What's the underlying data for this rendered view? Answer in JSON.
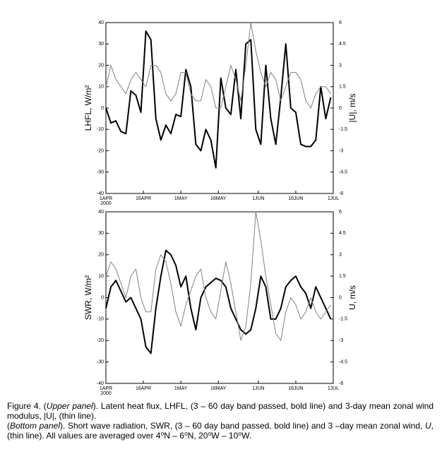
{
  "chart_data": [
    {
      "type": "line",
      "ylabel": "LHFL, W/m²",
      "y2label": "|U|, m/s",
      "xlim": [
        0,
        91
      ],
      "xticks": [
        {
          "value": 0,
          "label": "1APR"
        },
        {
          "value": 15,
          "label": "16APR"
        },
        {
          "value": 30,
          "label": "1MAY"
        },
        {
          "value": 45,
          "label": "16MAY"
        },
        {
          "value": 61,
          "label": "1JUN"
        },
        {
          "value": 76,
          "label": "16JUN"
        },
        {
          "value": 91,
          "label": "1JUL"
        }
      ],
      "x_year": "2000",
      "ylim": [
        -40,
        40
      ],
      "yticks": [
        -40,
        -30,
        -20,
        -10,
        0,
        10,
        20,
        30,
        40
      ],
      "y2lim": [
        -6,
        6
      ],
      "y2ticks": [
        -6,
        -4.5,
        -3,
        -1.5,
        0,
        1.5,
        3,
        4.5,
        6
      ],
      "x": [
        0,
        2,
        4,
        6,
        8,
        10,
        12,
        14,
        16,
        18,
        20,
        22,
        24,
        26,
        28,
        30,
        32,
        34,
        36,
        38,
        40,
        42,
        44,
        46,
        48,
        50,
        52,
        54,
        56,
        58,
        60,
        62,
        64,
        66,
        68,
        70,
        72,
        74,
        76,
        78,
        80,
        82,
        84,
        86,
        88,
        90
      ],
      "series": [
        {
          "color": "#000000",
          "style": "bold",
          "values": [
            0,
            -7,
            -6,
            -11,
            -12,
            8,
            6,
            -2,
            36,
            32,
            -5,
            -15,
            -8,
            -12,
            -3,
            -4,
            18,
            10,
            -17,
            -20,
            -10,
            -15,
            -28,
            14,
            0,
            -3,
            18,
            -5,
            30,
            32,
            -10,
            -17,
            20,
            -5,
            -17,
            5,
            30,
            0,
            -2,
            -17,
            -18,
            -18,
            -15,
            10,
            -5,
            5
          ]
        },
        {
          "color": "#808080",
          "style": "thin",
          "axis": "y2",
          "values": [
            1.5,
            3,
            2,
            1.5,
            1,
            2,
            2.5,
            2,
            1.5,
            3,
            3,
            2.5,
            1,
            0.5,
            1,
            2.5,
            2.5,
            1,
            0.5,
            0.5,
            2,
            1.5,
            0,
            0,
            1.5,
            3,
            2,
            0.5,
            3,
            6,
            4,
            2.5,
            1.5,
            2.5,
            2,
            0.5,
            1.5,
            2.5,
            2.5,
            2,
            0.5,
            0,
            1,
            1.5,
            1.5,
            1
          ]
        }
      ]
    },
    {
      "type": "line",
      "ylabel": "SWR, W/m²",
      "y2label": "U, m/s",
      "xlim": [
        0,
        91
      ],
      "xticks": [
        {
          "value": 0,
          "label": "1APR"
        },
        {
          "value": 15,
          "label": "16APR"
        },
        {
          "value": 30,
          "label": "1MAY"
        },
        {
          "value": 45,
          "label": "16MAY"
        },
        {
          "value": 61,
          "label": "1JUN"
        },
        {
          "value": 76,
          "label": "16JUN"
        },
        {
          "value": 91,
          "label": "1JUL"
        }
      ],
      "x_year": "2000",
      "ylim": [
        -40,
        40
      ],
      "yticks": [
        -40,
        -30,
        -20,
        -10,
        0,
        10,
        20,
        30,
        40
      ],
      "y2lim": [
        -6,
        6
      ],
      "y2ticks": [
        -6,
        -4.5,
        -3,
        -1.5,
        0,
        1.5,
        3,
        4.5,
        6
      ],
      "x": [
        0,
        2,
        4,
        6,
        8,
        10,
        12,
        14,
        16,
        18,
        20,
        22,
        24,
        26,
        28,
        30,
        32,
        34,
        36,
        38,
        40,
        42,
        44,
        46,
        48,
        50,
        52,
        54,
        56,
        58,
        60,
        62,
        64,
        66,
        68,
        70,
        72,
        74,
        76,
        78,
        80,
        82,
        84,
        86,
        88,
        90
      ],
      "series": [
        {
          "color": "#000000",
          "style": "bold",
          "values": [
            -5,
            5,
            8,
            3,
            -2,
            0,
            -5,
            -10,
            -23,
            -26,
            -5,
            10,
            22,
            20,
            15,
            5,
            10,
            -5,
            -15,
            0,
            5,
            7,
            9,
            8,
            5,
            -5,
            -10,
            -15,
            -17,
            -15,
            -5,
            10,
            5,
            -10,
            -10,
            -5,
            5,
            8,
            10,
            5,
            2,
            -5,
            5,
            0,
            -5,
            -10
          ]
        },
        {
          "color": "#808080",
          "style": "thin",
          "axis": "y2",
          "values": [
            1.5,
            2.5,
            2,
            1,
            0,
            1.5,
            2,
            0,
            -1,
            -1,
            2,
            3,
            2.5,
            1,
            -1,
            -2,
            -0.5,
            0.5,
            1.5,
            2,
            0,
            -1,
            -1.5,
            0.5,
            2.5,
            1,
            -1,
            -3,
            -2,
            1,
            6,
            4,
            1.5,
            -0.5,
            -2.5,
            -3,
            -1,
            0,
            -0.5,
            -1.5,
            -1,
            0,
            -1,
            -1.5,
            -1,
            -0.5
          ]
        }
      ]
    }
  ],
  "caption": [
    [
      "Figure 4. (",
      "Upper panel",
      "). Latent heat flux, LHFL, (3 – 60 day band passed, bold line) and 3-day mean zonal wind modulus, |U|, (thin line)."
    ],
    [
      "(",
      "Bottom panel",
      "). Short wave radiation, SWR, (3 – 60 day band passed, bold line) and 3 –day mean zonal wind, ",
      "U",
      ", (thin line). All values are averaged over 4⁰N – 6⁰N, 20⁰W – 10⁰W."
    ]
  ]
}
